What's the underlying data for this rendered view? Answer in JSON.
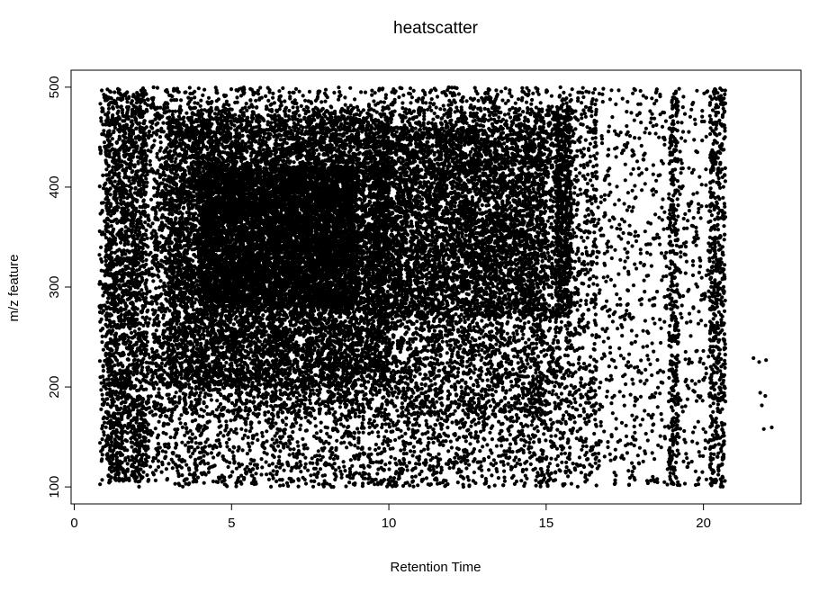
{
  "chart_data": {
    "type": "scatter",
    "title": "heatscatter",
    "xlabel": "Retention Time",
    "ylabel": "m/z feature",
    "xlim": [
      -0.1,
      23.1
    ],
    "ylim": [
      83,
      517
    ],
    "x_ticks": [
      0,
      5,
      10,
      15,
      20
    ],
    "y_ticks": [
      100,
      200,
      300,
      400,
      500
    ],
    "grid": false,
    "legend": "none",
    "density_colormap": [
      "#8c8cb4",
      "#1e1e78",
      "#5a0f46",
      "#b40f1e",
      "#f01e0a",
      "#ff6414",
      "#ffa01e",
      "#ffd21e"
    ],
    "point_regions": [
      {
        "x_range": [
          0.8,
          16.6
        ],
        "y_range": [
          100,
          500
        ],
        "count": 9000,
        "weight": 1
      },
      {
        "x_range": [
          1.0,
          2.3
        ],
        "y_range": [
          105,
          495
        ],
        "count": 1400,
        "weight": 3
      },
      {
        "x_range": [
          2.5,
          15.5
        ],
        "y_range": [
          170,
          480
        ],
        "count": 5000,
        "weight": 5
      },
      {
        "x_range": [
          3.0,
          10.0
        ],
        "y_range": [
          200,
          470
        ],
        "count": 5500,
        "weight": 9
      },
      {
        "x_range": [
          4.0,
          9.0
        ],
        "y_range": [
          280,
          420
        ],
        "count": 4500,
        "weight": 12
      },
      {
        "x_range": [
          9.5,
          15.0
        ],
        "y_range": [
          270,
          460
        ],
        "count": 3000,
        "weight": 7
      },
      {
        "x_range": [
          15.3,
          15.8
        ],
        "y_range": [
          270,
          480
        ],
        "count": 600,
        "weight": 6
      },
      {
        "x_range": [
          16.5,
          20.5
        ],
        "y_range": [
          100,
          500
        ],
        "count": 900,
        "weight": 0.3
      },
      {
        "x_range": [
          18.9,
          19.2
        ],
        "y_range": [
          100,
          500
        ],
        "count": 300,
        "weight": 0.8
      },
      {
        "x_range": [
          20.2,
          20.7
        ],
        "y_range": [
          100,
          500
        ],
        "count": 500,
        "weight": 1.2
      },
      {
        "x_range": [
          21.5,
          22.3
        ],
        "y_range": [
          110,
          270
        ],
        "count": 8,
        "weight": 0
      }
    ]
  }
}
